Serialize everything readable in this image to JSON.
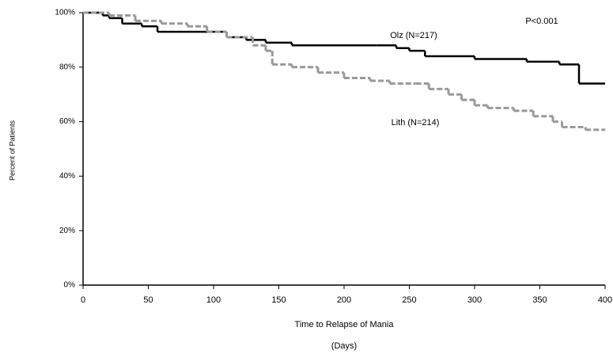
{
  "chart_data": {
    "type": "step-line",
    "ylabel": "Percent of Patients",
    "xlabel": "Time to Relapse of Mania",
    "xlabel_sub": "(Days)",
    "annotations": [
      "P<0.001"
    ],
    "xlim": [
      0,
      400
    ],
    "xticks": [
      0,
      50,
      100,
      150,
      200,
      250,
      300,
      350,
      400
    ],
    "ylim": [
      0,
      100
    ],
    "yticks": [
      {
        "value": 0,
        "label": "0%"
      },
      {
        "value": 20,
        "label": "20%"
      },
      {
        "value": 40,
        "label": "40%"
      },
      {
        "value": 60,
        "label": "60%"
      },
      {
        "value": 80,
        "label": "80%"
      },
      {
        "value": 100,
        "label": "100%"
      }
    ],
    "grid": false,
    "series": [
      {
        "name": "Olz (N=217)",
        "color": "#000000",
        "dashed": false,
        "x": [
          0,
          15,
          20,
          30,
          45,
          57,
          100,
          110,
          125,
          140,
          160,
          225,
          240,
          250,
          262,
          290,
          300,
          340,
          365,
          380,
          400
        ],
        "values": [
          100,
          99,
          98,
          96,
          95,
          93,
          93,
          91,
          90,
          89,
          88,
          88,
          87,
          86,
          84,
          84,
          83,
          82,
          81,
          74,
          74
        ]
      },
      {
        "name": "Lith (N=214)",
        "color": "#999999",
        "dashed": true,
        "x": [
          0,
          20,
          40,
          60,
          80,
          95,
          110,
          130,
          140,
          145,
          160,
          180,
          200,
          220,
          235,
          255,
          265,
          280,
          290,
          300,
          310,
          330,
          345,
          360,
          367,
          385,
          400
        ],
        "values": [
          100,
          99,
          97,
          96,
          95,
          93,
          91,
          88,
          86,
          81,
          80,
          78,
          76,
          75,
          74,
          74,
          72,
          70,
          68,
          66,
          65,
          64,
          62,
          60,
          58,
          57,
          57
        ]
      }
    ]
  }
}
